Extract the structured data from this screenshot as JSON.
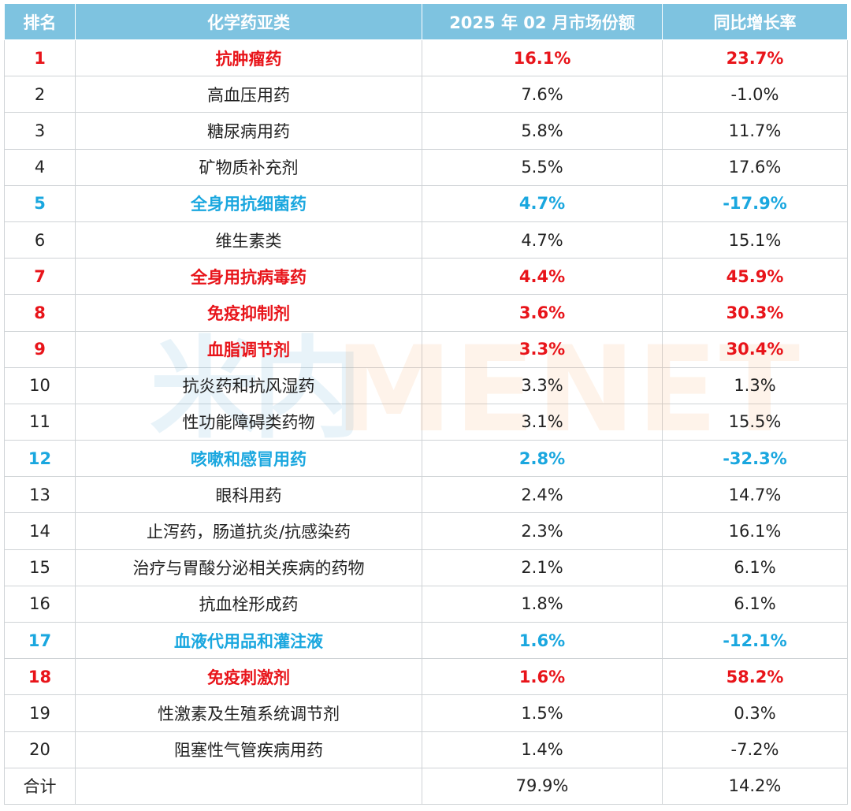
{
  "headers": {
    "rank": "排名",
    "category": "化学药亚类",
    "share": "2025 年 02 月市场份额",
    "growth": "同比增长率"
  },
  "rows": [
    {
      "rank": "1",
      "category": "抗肿瘤药",
      "share": "16.1%",
      "growth": "23.7%",
      "style": "red"
    },
    {
      "rank": "2",
      "category": "高血压用药",
      "share": "7.6%",
      "growth": "-1.0%",
      "style": "normal"
    },
    {
      "rank": "3",
      "category": "糖尿病用药",
      "share": "5.8%",
      "growth": "11.7%",
      "style": "normal"
    },
    {
      "rank": "4",
      "category": "矿物质补充剂",
      "share": "5.5%",
      "growth": "17.6%",
      "style": "normal"
    },
    {
      "rank": "5",
      "category": "全身用抗细菌药",
      "share": "4.7%",
      "growth": "-17.9%",
      "style": "blue"
    },
    {
      "rank": "6",
      "category": "维生素类",
      "share": "4.7%",
      "growth": "15.1%",
      "style": "normal"
    },
    {
      "rank": "7",
      "category": "全身用抗病毒药",
      "share": "4.4%",
      "growth": "45.9%",
      "style": "red"
    },
    {
      "rank": "8",
      "category": "免疫抑制剂",
      "share": "3.6%",
      "growth": "30.3%",
      "style": "red"
    },
    {
      "rank": "9",
      "category": "血脂调节剂",
      "share": "3.3%",
      "growth": "30.4%",
      "style": "red"
    },
    {
      "rank": "10",
      "category": "抗炎药和抗风湿药",
      "share": "3.3%",
      "growth": "1.3%",
      "style": "normal"
    },
    {
      "rank": "11",
      "category": "性功能障碍类药物",
      "share": "3.1%",
      "growth": "15.5%",
      "style": "normal"
    },
    {
      "rank": "12",
      "category": "咳嗽和感冒用药",
      "share": "2.8%",
      "growth": "-32.3%",
      "style": "blue"
    },
    {
      "rank": "13",
      "category": "眼科用药",
      "share": "2.4%",
      "growth": "14.7%",
      "style": "normal"
    },
    {
      "rank": "14",
      "category": "止泻药，肠道抗炎/抗感染药",
      "share": "2.3%",
      "growth": "16.1%",
      "style": "normal"
    },
    {
      "rank": "15",
      "category": "治疗与胃酸分泌相关疾病的药物",
      "share": "2.1%",
      "growth": "6.1%",
      "style": "normal"
    },
    {
      "rank": "16",
      "category": "抗血栓形成药",
      "share": "1.8%",
      "growth": "6.1%",
      "style": "normal"
    },
    {
      "rank": "17",
      "category": "血液代用品和灌注液",
      "share": "1.6%",
      "growth": "-12.1%",
      "style": "blue"
    },
    {
      "rank": "18",
      "category": "免疫刺激剂",
      "share": "1.6%",
      "growth": "58.2%",
      "style": "red"
    },
    {
      "rank": "19",
      "category": "性激素及生殖系统调节剂",
      "share": "1.5%",
      "growth": "0.3%",
      "style": "normal"
    },
    {
      "rank": "20",
      "category": "阻塞性气管疾病用药",
      "share": "1.4%",
      "growth": "-7.2%",
      "style": "normal"
    }
  ],
  "total": {
    "label": "合计",
    "category": "",
    "share": "79.9%",
    "growth": "14.2%"
  },
  "watermark": {
    "cn": "米内",
    "en": "MENET"
  },
  "colors": {
    "header_bg": "#7ec3e0",
    "highlight_red": "#e8141a",
    "highlight_blue": "#1aa7df"
  }
}
